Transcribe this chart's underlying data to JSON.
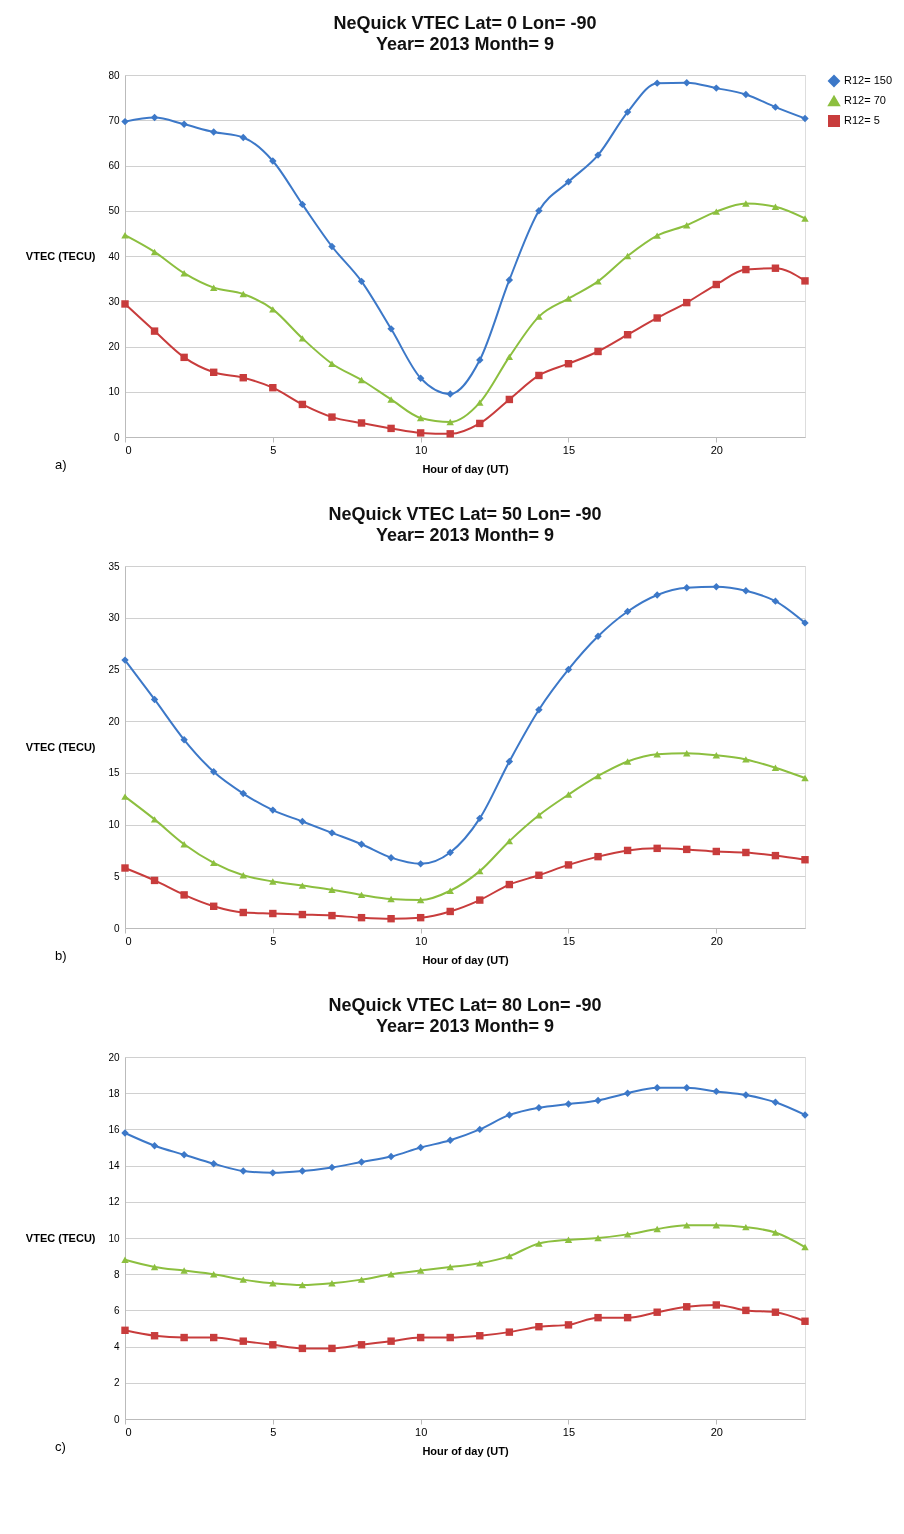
{
  "chart_data": [
    {
      "type": "line",
      "title": "NeQuick VTEC Lat= 0 Lon= -90",
      "subtitle": "Year= 2013 Month= 9",
      "xlabel": "Hour of day (UT)",
      "ylabel": "VTEC (TECU)",
      "annotations": [
        "a)"
      ],
      "x": [
        0,
        1,
        2,
        3,
        4,
        5,
        6,
        7,
        8,
        9,
        10,
        11,
        12,
        13,
        14,
        15,
        16,
        17,
        18,
        19,
        20,
        21,
        22,
        23
      ],
      "xlim": [
        0,
        23
      ],
      "xticks": [
        0,
        5,
        10,
        15,
        20
      ],
      "ylim": [
        0,
        80
      ],
      "yticks": [
        0,
        10,
        20,
        30,
        40,
        50,
        60,
        70,
        80
      ],
      "grid": "y",
      "legend": "right",
      "series": [
        {
          "name": "R12= 150",
          "color": "#3c78c8",
          "marker": "diamond",
          "values": [
            69.7,
            70.6,
            69.1,
            67.4,
            66.2,
            61,
            51.4,
            42.1,
            34.4,
            23.9,
            13,
            9.5,
            17,
            34.7,
            50,
            56.4,
            62.3,
            71.8,
            78.2,
            78.3,
            77.1,
            75.7,
            72.9,
            70.4
          ]
        },
        {
          "name": "R12= 70",
          "color": "#8cbf3f",
          "marker": "triangle",
          "values": [
            44.6,
            40.9,
            36.2,
            33,
            31.6,
            28.2,
            21.8,
            16.2,
            12.6,
            8.3,
            4.2,
            3.3,
            7.6,
            17.7,
            26.6,
            30.6,
            34.4,
            40,
            44.5,
            46.8,
            49.8,
            51.6,
            50.9,
            48.3
          ]
        },
        {
          "name": "R12= 5",
          "color": "#c83c3c",
          "marker": "square",
          "values": [
            29.4,
            23.4,
            17.6,
            14.3,
            13.1,
            10.9,
            7.2,
            4.4,
            3.1,
            1.9,
            0.9,
            0.7,
            3,
            8.3,
            13.6,
            16.2,
            18.9,
            22.6,
            26.3,
            29.7,
            33.7,
            37,
            37.3,
            34.5
          ]
        }
      ]
    },
    {
      "type": "line",
      "title": "NeQuick VTEC Lat= 50 Lon= -90",
      "subtitle": "Year= 2013 Month= 9",
      "xlabel": "Hour of day (UT)",
      "ylabel": "VTEC (TECU)",
      "annotations": [
        "b)"
      ],
      "x": [
        0,
        1,
        2,
        3,
        4,
        5,
        6,
        7,
        8,
        9,
        10,
        11,
        12,
        13,
        14,
        15,
        16,
        17,
        18,
        19,
        20,
        21,
        22,
        23
      ],
      "xlim": [
        0,
        23
      ],
      "xticks": [
        0,
        5,
        10,
        15,
        20
      ],
      "ylim": [
        0,
        35
      ],
      "yticks": [
        0,
        5,
        10,
        15,
        20,
        25,
        30,
        35
      ],
      "grid": "y",
      "legend": "right",
      "series": [
        {
          "name": "R12= 150",
          "color": "#3c78c8",
          "marker": "diamond",
          "values": [
            25.9,
            22.1,
            18.2,
            15.1,
            13,
            11.4,
            10.3,
            9.2,
            8.1,
            6.8,
            6.2,
            7.3,
            10.6,
            16.1,
            21.1,
            25,
            28.2,
            30.6,
            32.2,
            32.9,
            33,
            32.6,
            31.6,
            29.5
          ]
        },
        {
          "name": "R12= 70",
          "color": "#8cbf3f",
          "marker": "triangle",
          "values": [
            12.7,
            10.5,
            8.1,
            6.3,
            5.1,
            4.5,
            4.1,
            3.7,
            3.2,
            2.8,
            2.7,
            3.6,
            5.5,
            8.4,
            10.9,
            12.9,
            14.7,
            16.1,
            16.8,
            16.9,
            16.7,
            16.3,
            15.5,
            14.5
          ]
        },
        {
          "name": "R12= 5",
          "color": "#c83c3c",
          "marker": "square",
          "values": [
            5.8,
            4.6,
            3.2,
            2.1,
            1.5,
            1.4,
            1.3,
            1.2,
            1,
            0.9,
            1,
            1.6,
            2.7,
            4.2,
            5.1,
            6.1,
            6.9,
            7.5,
            7.7,
            7.6,
            7.4,
            7.3,
            7,
            6.6
          ]
        }
      ]
    },
    {
      "type": "line",
      "title": "NeQuick VTEC Lat= 80 Lon= -90",
      "subtitle": "Year= 2013 Month= 9",
      "xlabel": "Hour of day (UT)",
      "ylabel": "VTEC (TECU)",
      "annotations": [
        "c)"
      ],
      "x": [
        0,
        1,
        2,
        3,
        4,
        5,
        6,
        7,
        8,
        9,
        10,
        11,
        12,
        13,
        14,
        15,
        16,
        17,
        18,
        19,
        20,
        21,
        22,
        23
      ],
      "xlim": [
        0,
        23
      ],
      "xticks": [
        0,
        5,
        10,
        15,
        20
      ],
      "ylim": [
        0,
        20
      ],
      "yticks": [
        0,
        2,
        4,
        6,
        8,
        10,
        12,
        14,
        16,
        18,
        20
      ],
      "grid": "y",
      "legend": "right",
      "series": [
        {
          "name": "R12= 150",
          "color": "#3c78c8",
          "marker": "diamond",
          "values": [
            15.8,
            15.1,
            14.6,
            14.1,
            13.7,
            13.6,
            13.7,
            13.9,
            14.2,
            14.5,
            15,
            15.4,
            16,
            16.8,
            17.2,
            17.4,
            17.6,
            18,
            18.3,
            18.3,
            18.1,
            17.9,
            17.5,
            16.8
          ]
        },
        {
          "name": "R12= 70",
          "color": "#8cbf3f",
          "marker": "triangle",
          "values": [
            8.8,
            8.4,
            8.2,
            8,
            7.7,
            7.5,
            7.4,
            7.5,
            7.7,
            8,
            8.2,
            8.4,
            8.6,
            9,
            9.7,
            9.9,
            10,
            10.2,
            10.5,
            10.7,
            10.7,
            10.6,
            10.3,
            9.5
          ]
        },
        {
          "name": "R12= 5",
          "color": "#c83c3c",
          "marker": "square",
          "values": [
            4.9,
            4.6,
            4.5,
            4.5,
            4.3,
            4.1,
            3.9,
            3.9,
            4.1,
            4.3,
            4.5,
            4.5,
            4.6,
            4.8,
            5.1,
            5.2,
            5.6,
            5.6,
            5.9,
            6.2,
            6.3,
            6,
            5.9,
            5.4
          ]
        }
      ]
    }
  ]
}
